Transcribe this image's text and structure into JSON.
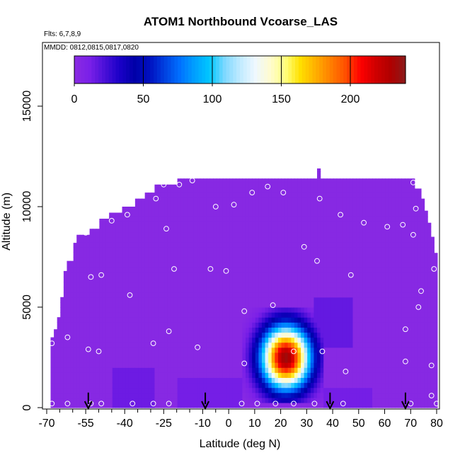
{
  "chart_data": {
    "type": "heatmap",
    "title": "ATOM1 Northbound Vcoarse_LAS",
    "flights_note": "Flts: 6,7,8,9",
    "dates_note": "MMDD: 0812,0815,0817,0820",
    "xlabel": "Latitude (deg N)",
    "ylabel": "Altitude (m)",
    "xlim": [
      -70,
      80
    ],
    "ylim": [
      0,
      17500
    ],
    "x_ticks": [
      -70,
      -55,
      -40,
      -25,
      -10,
      0,
      10,
      20,
      30,
      40,
      50,
      60,
      70,
      80
    ],
    "x_tick_labels": [
      "-70",
      "-55",
      "-40",
      "-25",
      "-10",
      "0",
      "10",
      "20",
      "30",
      "40",
      "50",
      "60",
      "70",
      "80"
    ],
    "x_minor_ticks": [
      -65,
      -60,
      -50,
      -45,
      -35,
      -30,
      -20,
      -15,
      -5
    ],
    "y_ticks": [
      0,
      5000,
      10000,
      15000
    ],
    "y_tick_labels": [
      "0",
      "5000",
      "10000",
      "15000"
    ],
    "colorbar": {
      "min": 0,
      "max": 240,
      "ticks": [
        0,
        50,
        100,
        150,
        200
      ],
      "tick_labels": [
        "0",
        "50",
        "100",
        "150",
        "200"
      ],
      "colors": [
        "#8a2be2",
        "#7a20e8",
        "#4b10d8",
        "#1a00c8",
        "#0000a8",
        "#0010c0",
        "#0040e0",
        "#0070ff",
        "#00a0ff",
        "#00c8ff",
        "#80d8ff",
        "#c0eaff",
        "#eef8ff",
        "#fffbd0",
        "#ffff80",
        "#ffe000",
        "#ffb000",
        "#ff8000",
        "#ff5000",
        "#ff0000",
        "#d00000",
        "#b00000",
        "#8b1a1a"
      ]
    },
    "background_value": 2,
    "envelope": [
      {
        "lat": -68.5,
        "top": 3500
      },
      {
        "lat": -67,
        "top": 3900
      },
      {
        "lat": -66,
        "top": 4500
      },
      {
        "lat": -64.5,
        "top": 5500
      },
      {
        "lat": -63,
        "top": 6800
      },
      {
        "lat": -62,
        "top": 7300
      },
      {
        "lat": -60,
        "top": 8200
      },
      {
        "lat": -58,
        "top": 8600
      },
      {
        "lat": -54,
        "top": 8900
      },
      {
        "lat": -50,
        "top": 9400
      },
      {
        "lat": -46,
        "top": 9700
      },
      {
        "lat": -41,
        "top": 10000
      },
      {
        "lat": -36,
        "top": 10400
      },
      {
        "lat": -32,
        "top": 10700
      },
      {
        "lat": -29,
        "top": 11100
      },
      {
        "lat": -20,
        "top": 11400
      },
      {
        "lat": 33,
        "top": 11400
      },
      {
        "lat": 34,
        "top": 11900
      },
      {
        "lat": 35,
        "top": 11400
      },
      {
        "lat": 70,
        "top": 11400
      },
      {
        "lat": 72,
        "top": 10900
      },
      {
        "lat": 74,
        "top": 10400
      },
      {
        "lat": 75.5,
        "top": 9800
      },
      {
        "lat": 77,
        "top": 9200
      },
      {
        "lat": 78,
        "top": 8500
      },
      {
        "lat": 79,
        "top": 7700
      },
      {
        "lat": 80,
        "top": 6900
      }
    ],
    "plume_center": {
      "lat": 22,
      "alt": 2500
    },
    "plume_spread": {
      "lat": 9,
      "alt": 1500
    },
    "plume_peak": 235,
    "plume_region": {
      "lat_min": 5,
      "lat_max": 37,
      "alt_min": 300,
      "alt_max": 5000
    },
    "faint_enhancement": [
      {
        "lat_min": -45,
        "lat_max": -28,
        "alt_min": 0,
        "alt_max": 2000,
        "value": 14
      },
      {
        "lat_min": -20,
        "lat_max": 5,
        "alt_min": 0,
        "alt_max": 1500,
        "value": 12
      },
      {
        "lat_min": 36,
        "lat_max": 55,
        "alt_min": 0,
        "alt_max": 1000,
        "value": 12
      },
      {
        "lat_min": 33,
        "lat_max": 48,
        "alt_min": 3000,
        "alt_max": 5500,
        "value": 16
      }
    ],
    "sample_points": [
      {
        "lat": -68,
        "alt": 200
      },
      {
        "lat": -62,
        "alt": 200
      },
      {
        "lat": -53,
        "alt": 200
      },
      {
        "lat": -49,
        "alt": 200
      },
      {
        "lat": -37,
        "alt": 200
      },
      {
        "lat": -29,
        "alt": 200
      },
      {
        "lat": -23,
        "alt": 200
      },
      {
        "lat": 5,
        "alt": 200
      },
      {
        "lat": 11,
        "alt": 200
      },
      {
        "lat": 18,
        "alt": 200
      },
      {
        "lat": 25,
        "alt": 200
      },
      {
        "lat": 33,
        "alt": 200
      },
      {
        "lat": 44,
        "alt": 200
      },
      {
        "lat": 70,
        "alt": 200
      },
      {
        "lat": 80,
        "alt": 200
      },
      {
        "lat": 78,
        "alt": 600
      },
      {
        "lat": -68,
        "alt": 3200
      },
      {
        "lat": -62,
        "alt": 3500
      },
      {
        "lat": -54,
        "alt": 2900
      },
      {
        "lat": -50,
        "alt": 2800
      },
      {
        "lat": -29,
        "alt": 3200
      },
      {
        "lat": -23,
        "alt": 3800
      },
      {
        "lat": -12,
        "alt": 3000
      },
      {
        "lat": 6,
        "alt": 2200
      },
      {
        "lat": 25,
        "alt": 2800
      },
      {
        "lat": 36,
        "alt": 2800
      },
      {
        "lat": 45,
        "alt": 1800
      },
      {
        "lat": 68,
        "alt": 2300
      },
      {
        "lat": 78,
        "alt": 2100
      },
      {
        "lat": 68,
        "alt": 3900
      },
      {
        "lat": -38,
        "alt": 5600
      },
      {
        "lat": 6,
        "alt": 4800
      },
      {
        "lat": 17,
        "alt": 5100
      },
      {
        "lat": 73,
        "alt": 5000
      },
      {
        "lat": 74,
        "alt": 5800
      },
      {
        "lat": -53,
        "alt": 6500
      },
      {
        "lat": -49,
        "alt": 6600
      },
      {
        "lat": -21,
        "alt": 6900
      },
      {
        "lat": -7,
        "alt": 6900
      },
      {
        "lat": -1,
        "alt": 6800
      },
      {
        "lat": 47,
        "alt": 6600
      },
      {
        "lat": 34,
        "alt": 7300
      },
      {
        "lat": 79,
        "alt": 6900
      },
      {
        "lat": 29,
        "alt": 8000
      },
      {
        "lat": -55,
        "alt": 8700
      },
      {
        "lat": -24,
        "alt": 8900
      },
      {
        "lat": 61,
        "alt": 9000
      },
      {
        "lat": 67,
        "alt": 9100
      },
      {
        "lat": 71,
        "alt": 8600
      },
      {
        "lat": 52,
        "alt": 9200
      },
      {
        "lat": -45,
        "alt": 9300
      },
      {
        "lat": -39,
        "alt": 9600
      },
      {
        "lat": 43,
        "alt": 9600
      },
      {
        "lat": -5,
        "alt": 10000
      },
      {
        "lat": 2,
        "alt": 10100
      },
      {
        "lat": -28,
        "alt": 10400
      },
      {
        "lat": 35,
        "alt": 10400
      },
      {
        "lat": 9,
        "alt": 10700
      },
      {
        "lat": 21,
        "alt": 10700
      },
      {
        "lat": -25,
        "alt": 11100
      },
      {
        "lat": -19,
        "alt": 11100
      },
      {
        "lat": -14,
        "alt": 11300
      },
      {
        "lat": 15,
        "alt": 11000
      },
      {
        "lat": 71,
        "alt": 11200
      },
      {
        "lat": 72,
        "alt": 9900
      }
    ],
    "arrows_lat": [
      -54,
      -9,
      39,
      68
    ],
    "arrow_alt_top": 750
  }
}
